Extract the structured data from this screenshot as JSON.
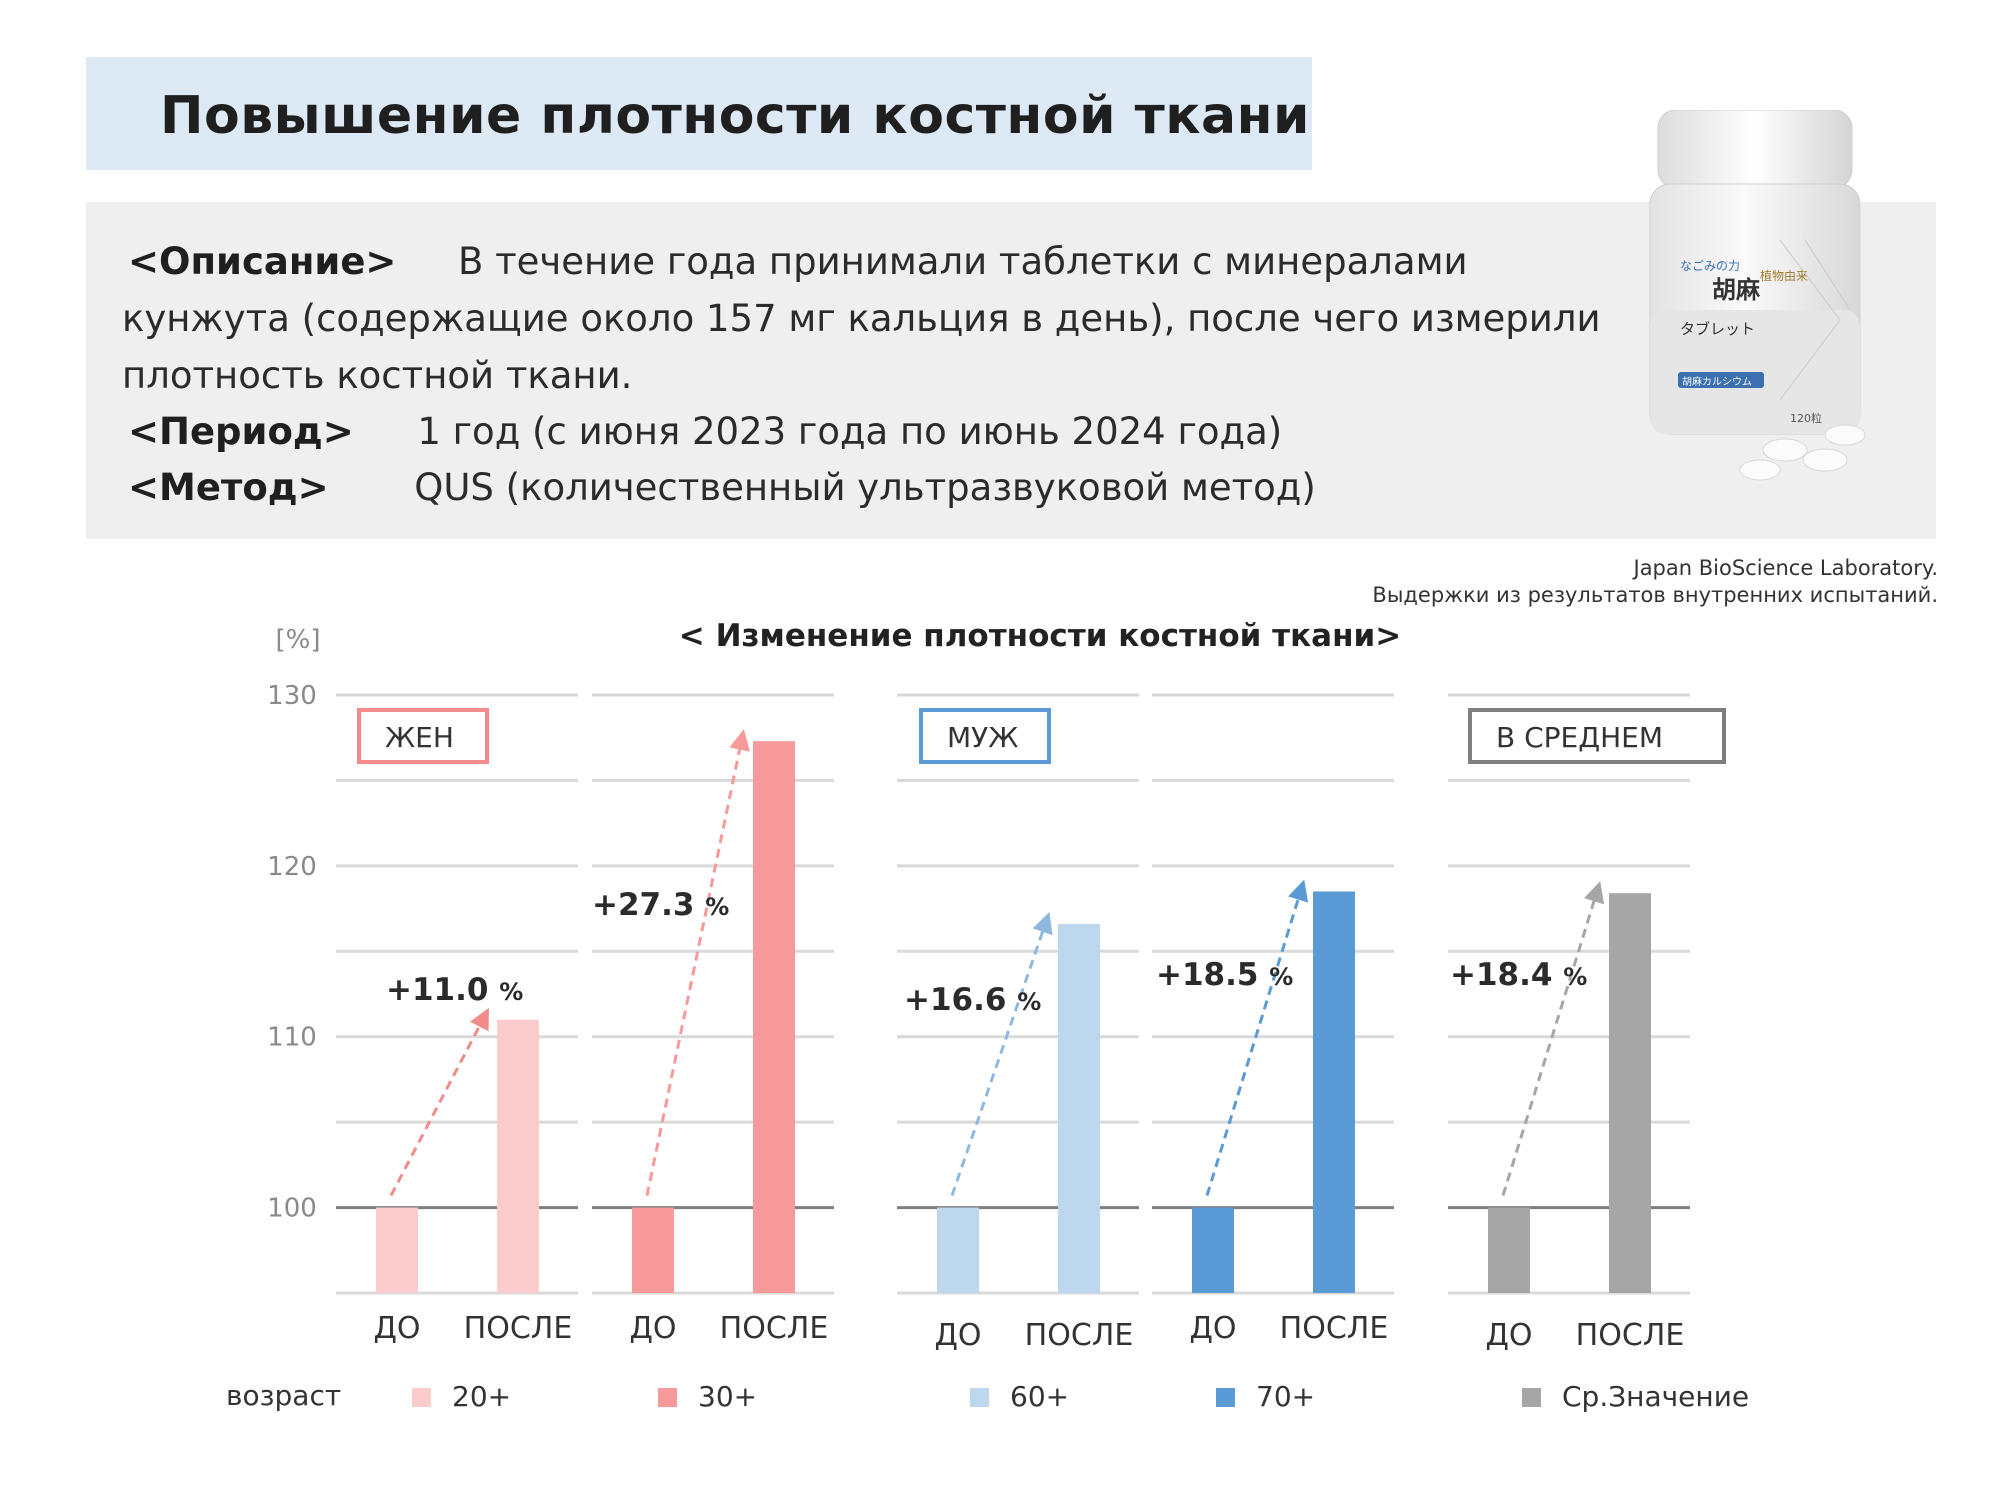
{
  "header": {
    "title": "Повышение плотности костной ткани"
  },
  "description": {
    "line1_tag": "<Описание>",
    "line1_text": "В течение года принимали таблетки с минералами",
    "line2_text": "кунжута (содержащие около 157 мг кальция в день), после чего измерили",
    "line3_text": "плотность костной ткани.",
    "period_tag": "<Период>",
    "period_text": "1 год (с июня 2023 года по июнь 2024 года)",
    "method_tag": "<Метод>",
    "method_text": "QUS (количественный ультразвуковой метод)"
  },
  "product": {
    "brand_jp": "なごみの力",
    "name_jp_1": "胡麻",
    "name_jp_2": "タブレット",
    "sub_jp": "植物由来",
    "badge_jp": "胡麻カルシウム",
    "count_jp": "120粒"
  },
  "credit": {
    "line1": "Japan BioScience Laboratory.",
    "line2": "Выдержки из результатов внутренних испытаний."
  },
  "chart_data": {
    "type": "bar",
    "title": "< Изменение плотности костной ткани>",
    "y_unit": "[%]",
    "ylim": [
      95,
      130
    ],
    "yticks": [
      100,
      110,
      120,
      130
    ],
    "grid": true,
    "category_labels": [
      "ДО",
      "ПОСЛЕ"
    ],
    "group_labels": {
      "female": "ЖЕН",
      "male": "МУЖ",
      "average": "В СРЕДНЕМ"
    },
    "legend_prefix": "возраст",
    "series": [
      {
        "name": "20+",
        "group": "female",
        "values": [
          100,
          111.0
        ],
        "change_label": "+11.0",
        "color": "#fccbcb"
      },
      {
        "name": "30+",
        "group": "female",
        "values": [
          100,
          127.3
        ],
        "change_label": "+27.3",
        "color": "#f99a9a"
      },
      {
        "name": "60+",
        "group": "male",
        "values": [
          100,
          116.6
        ],
        "change_label": "+16.6",
        "color": "#bdd7ee"
      },
      {
        "name": "70+",
        "group": "male",
        "values": [
          100,
          118.5
        ],
        "change_label": "+18.5",
        "color": "#5b9bd5"
      },
      {
        "name": "Ср.Значение",
        "group": "average",
        "values": [
          100,
          118.4
        ],
        "change_label": "+18.4",
        "color": "#a6a6a6"
      }
    ],
    "percent_sign": "%",
    "colors": {
      "female_box": "#f28b8b",
      "male_box": "#5b9bd5",
      "average_box": "#7f7f7f",
      "grid": "#d9d9d9",
      "baseline": "#7f7f7f"
    }
  }
}
